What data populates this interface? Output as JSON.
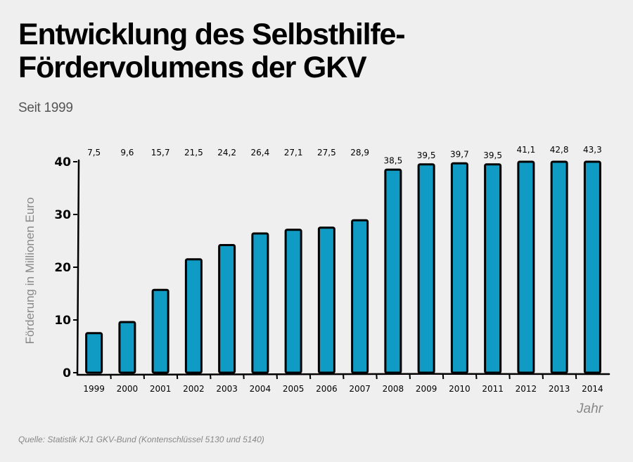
{
  "header": {
    "title_line1": "Entwicklung des Selbsthilfe-",
    "title_line2": "Fördervolumens der GKV",
    "subtitle": "Seit 1999"
  },
  "footer": {
    "source": "Quelle: Statistik KJ1 GKV-Bund (Kontenschlüssel 5130 und 5140)"
  },
  "colors": {
    "bar_fill": "#0f9bc4",
    "bar_stroke": "#000000",
    "background": "#efefef"
  },
  "chart_data": {
    "type": "bar",
    "title": "Entwicklung des Selbsthilfe-Fördervolumens der GKV",
    "subtitle": "Seit 1999",
    "xlabel": "Jahr",
    "ylabel": "Förderung in Millionen Euro",
    "categories": [
      "1999",
      "2000",
      "2001",
      "2002",
      "2003",
      "2004",
      "2005",
      "2006",
      "2007",
      "2008",
      "2009",
      "2010",
      "2011",
      "2012",
      "2013",
      "2014"
    ],
    "values": [
      7.5,
      9.6,
      15.7,
      21.5,
      24.2,
      26.4,
      27.1,
      27.5,
      28.9,
      38.5,
      39.5,
      39.7,
      39.5,
      41.1,
      42.8,
      43.3
    ],
    "value_labels": [
      "7,5",
      "9,6",
      "15,7",
      "21,5",
      "24,2",
      "26,4",
      "27,1",
      "27,5",
      "28,9",
      "38,5",
      "39,5",
      "39,7",
      "39,5",
      "41,1",
      "42,8",
      "43,3"
    ],
    "yticks": [
      0,
      10,
      20,
      30,
      40
    ],
    "ylim": [
      0,
      40
    ],
    "grid": false,
    "legend": "none",
    "note": "bars exceeding the axis maximum are drawn capped at the top of the axis"
  }
}
